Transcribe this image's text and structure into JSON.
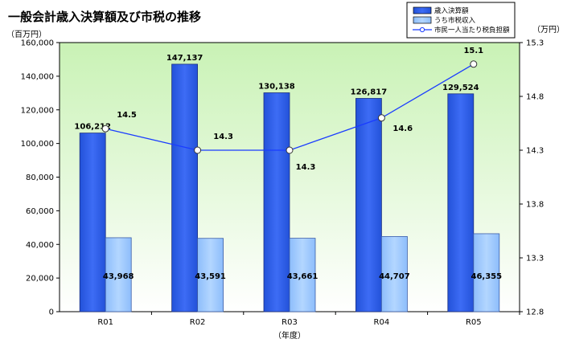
{
  "chart_data": {
    "type": "bar",
    "title": "一般会計歳入決算額及び市税の推移",
    "ylabel_left": "（百万円）",
    "ylabel_right": "（万円）",
    "xlabel": "（年度）",
    "categories": [
      "R01",
      "R02",
      "R03",
      "R04",
      "R05"
    ],
    "ylim_left": [
      0,
      160000
    ],
    "yticks_left": [
      "0",
      "20,000",
      "40,000",
      "60,000",
      "80,000",
      "100,000",
      "120,000",
      "140,000",
      "160,000"
    ],
    "ylim_right": [
      12.8,
      15.3
    ],
    "yticks_right": [
      "12.8",
      "13.3",
      "13.8",
      "14.3",
      "14.8",
      "15.3"
    ],
    "series": [
      {
        "name": "歳入決算額",
        "kind": "bar",
        "axis": "left",
        "color": "#2f5fe8",
        "values": [
          106212,
          147137,
          130138,
          126817,
          129524
        ],
        "labels": [
          "106,212",
          "147,137",
          "130,138",
          "126,817",
          "129,524"
        ]
      },
      {
        "name": "うち市税収入",
        "kind": "bar",
        "axis": "left",
        "color": "#9ec9ff",
        "values": [
          43968,
          43591,
          43661,
          44707,
          46355
        ],
        "labels": [
          "43,968",
          "43,591",
          "43,661",
          "44,707",
          "46,355"
        ]
      },
      {
        "name": "市民一人当たり税負担額",
        "kind": "line",
        "axis": "right",
        "color": "#1a3cff",
        "values": [
          14.5,
          14.3,
          14.3,
          14.6,
          15.1
        ],
        "labels": [
          "14.5",
          "14.3",
          "14.3",
          "14.6",
          "15.1"
        ]
      }
    ],
    "legend_position": "top-right",
    "grid": false,
    "background": "green-gradient"
  }
}
